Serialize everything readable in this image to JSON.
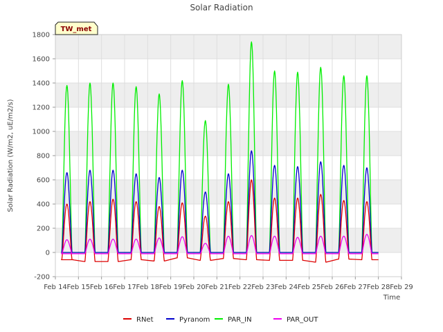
{
  "chart_data": {
    "type": "line",
    "title": "Solar Radiation",
    "badge": "TW_met",
    "xlabel": "Time",
    "ylabel": "Solar Radiation (W/m2, uE/m2/s)",
    "x_ticks": [
      "Feb 14",
      "Feb 15",
      "Feb 16",
      "Feb 17",
      "Feb 18",
      "Feb 19",
      "Feb 20",
      "Feb 21",
      "Feb 22",
      "Feb 23",
      "Feb 24",
      "Feb 25",
      "Feb 26",
      "Feb 27",
      "Feb 28",
      "Feb 29"
    ],
    "xlim": [
      14,
      29
    ],
    "ylim": [
      -200,
      1800
    ],
    "y_ticks": [
      -200,
      0,
      200,
      400,
      600,
      800,
      1000,
      1200,
      1400,
      1600,
      1800
    ],
    "grid": true,
    "background_bands": "alternating light gray",
    "legend_position": "bottom-center",
    "peak_days": [
      15,
      16,
      17,
      18,
      19,
      20,
      21,
      22,
      23,
      24,
      25,
      26,
      27,
      28
    ],
    "series": [
      {
        "name": "RNet",
        "color": "#dd0000",
        "peaks": [
          400,
          420,
          440,
          420,
          380,
          410,
          300,
          420,
          600,
          450,
          450,
          480,
          430,
          420
        ],
        "night": [
          -60,
          -75,
          -75,
          -60,
          -70,
          -45,
          -65,
          -50,
          -60,
          -65,
          -65,
          -80,
          -55,
          -60
        ]
      },
      {
        "name": "Pyranom",
        "color": "#0000cc",
        "peaks": [
          660,
          680,
          680,
          650,
          620,
          680,
          500,
          650,
          840,
          720,
          710,
          750,
          720,
          700
        ],
        "night": [
          0,
          0,
          0,
          0,
          0,
          0,
          0,
          0,
          0,
          0,
          0,
          0,
          0,
          0
        ]
      },
      {
        "name": "PAR_IN",
        "color": "#00ee00",
        "peaks": [
          1380,
          1400,
          1400,
          1370,
          1310,
          1420,
          1090,
          1390,
          1740,
          1500,
          1490,
          1530,
          1460,
          1460
        ],
        "night": [
          0,
          0,
          0,
          0,
          0,
          0,
          0,
          0,
          0,
          0,
          0,
          0,
          0,
          0
        ]
      },
      {
        "name": "PAR_OUT",
        "color": "#ee00ee",
        "peaks": [
          105,
          110,
          110,
          110,
          120,
          130,
          75,
          135,
          140,
          135,
          125,
          135,
          135,
          150
        ],
        "night": [
          -10,
          -10,
          -10,
          -10,
          -10,
          -10,
          -10,
          -10,
          -10,
          -10,
          -10,
          -10,
          -10,
          -10
        ]
      }
    ]
  }
}
